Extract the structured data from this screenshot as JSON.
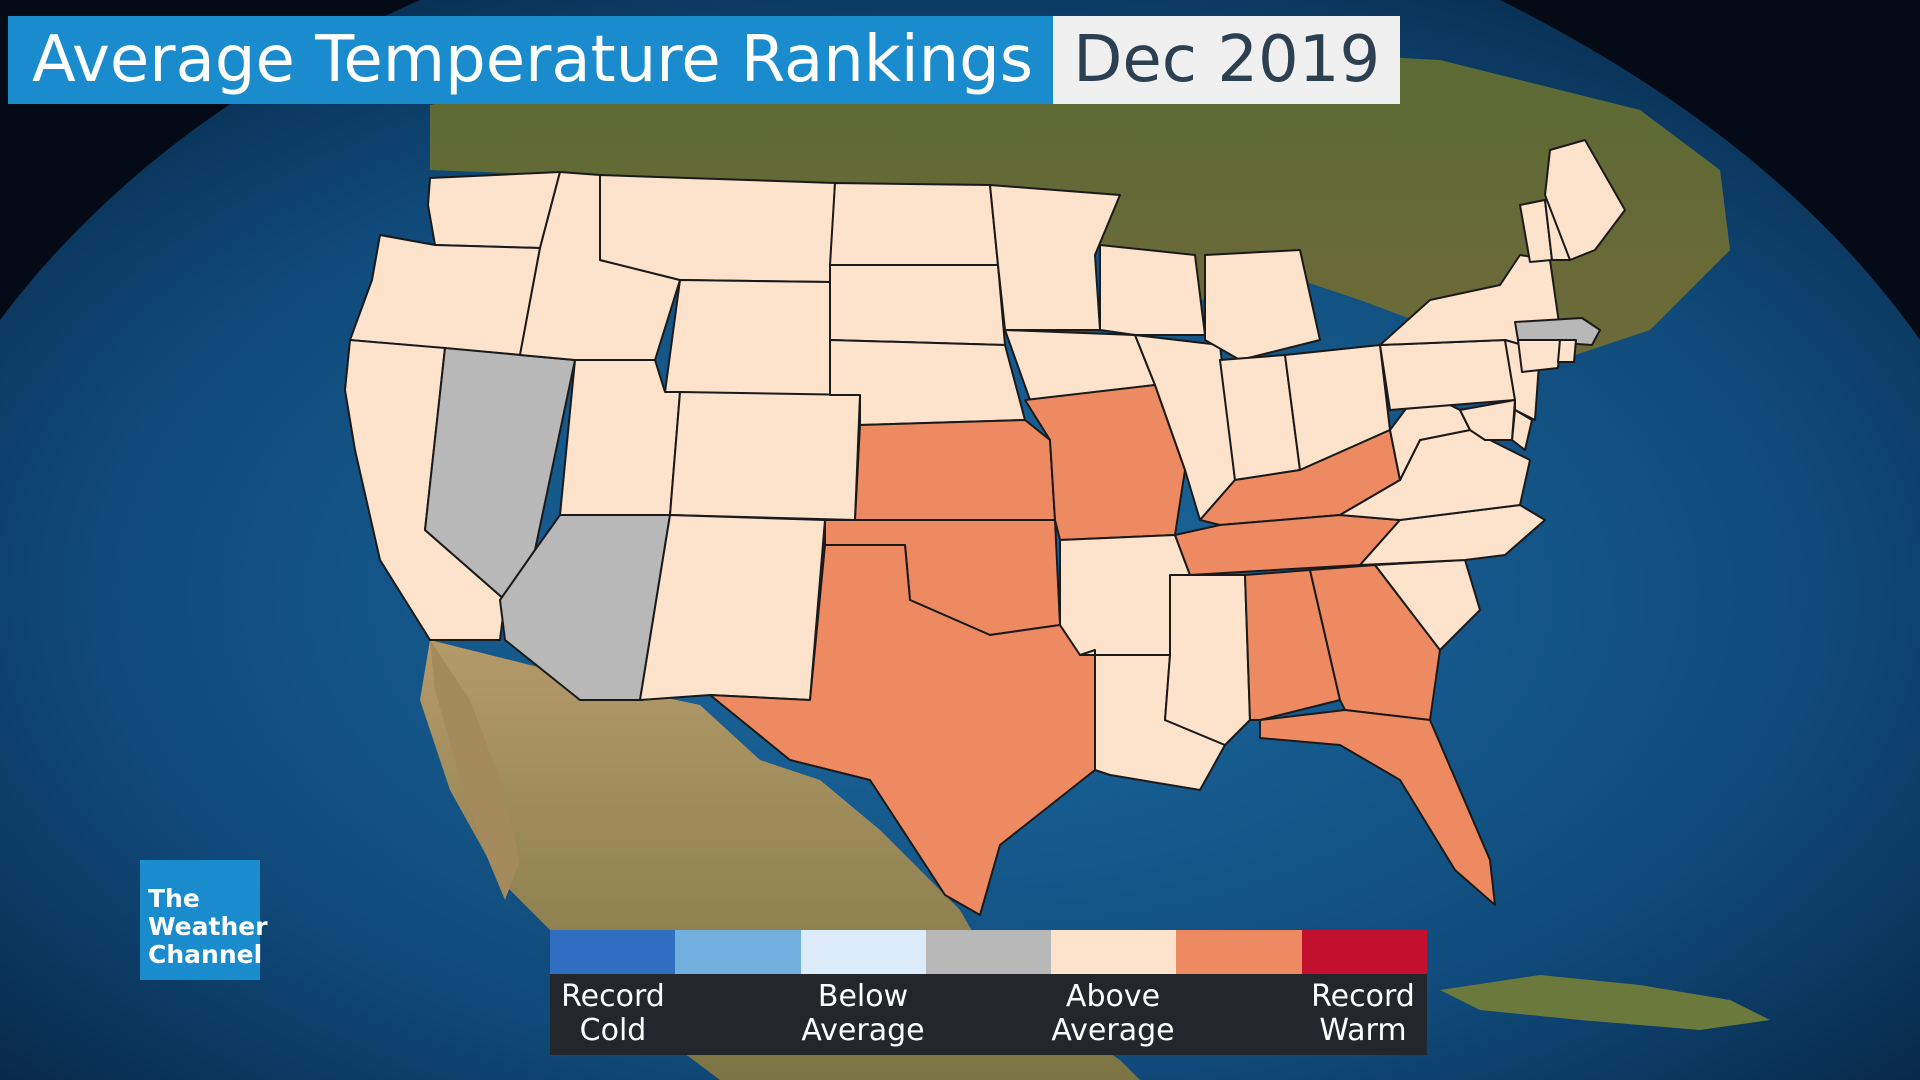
{
  "header": {
    "title": "Average Temperature Rankings",
    "date": "Dec 2019"
  },
  "logo": {
    "line1": "The",
    "line2": "Weather",
    "line3": "Channel"
  },
  "categories": {
    "record_cold": "#2f6ec0",
    "much_below": "#71b0de",
    "below": "#dcecfa",
    "near": "#b8b8b8",
    "above": "#fde2cc",
    "much_above": "#ee8a62",
    "record_warm": "#c2102e"
  },
  "legend": {
    "swatches": [
      "#2f6ec0",
      "#71b0de",
      "#dcecfa",
      "#b8b8b8",
      "#fde2cc",
      "#ee8a62",
      "#c2102e"
    ],
    "labels": [
      {
        "line1": "Record",
        "line2": "Cold"
      },
      {
        "line1": "Below",
        "line2": "Average"
      },
      {
        "line1": "Above",
        "line2": "Average"
      },
      {
        "line1": "Record",
        "line2": "Warm"
      }
    ]
  },
  "states": {
    "WA": "above",
    "OR": "above",
    "CA": "above",
    "ID": "above",
    "NV": "near",
    "MT": "above",
    "WY": "above",
    "UT": "above",
    "AZ": "near",
    "CO": "above",
    "NM": "above",
    "ND": "above",
    "SD": "above",
    "NE": "above",
    "KS": "much_above",
    "OK": "much_above",
    "TX": "much_above",
    "MN": "above",
    "IA": "above",
    "MO": "much_above",
    "AR": "above",
    "LA": "above",
    "WI": "above",
    "IL": "above",
    "MS": "above",
    "MI": "above",
    "IN": "above",
    "OH": "above",
    "KY": "much_above",
    "TN": "much_above",
    "AL": "much_above",
    "GA": "much_above",
    "FL": "much_above",
    "SC": "above",
    "NC": "above",
    "VA": "above",
    "WV": "above",
    "PA": "above",
    "NY": "above",
    "NJ": "above",
    "DE": "above",
    "MD": "above",
    "VT": "above",
    "NH": "above",
    "ME": "above",
    "MA": "near",
    "CT": "above",
    "RI": "above"
  }
}
